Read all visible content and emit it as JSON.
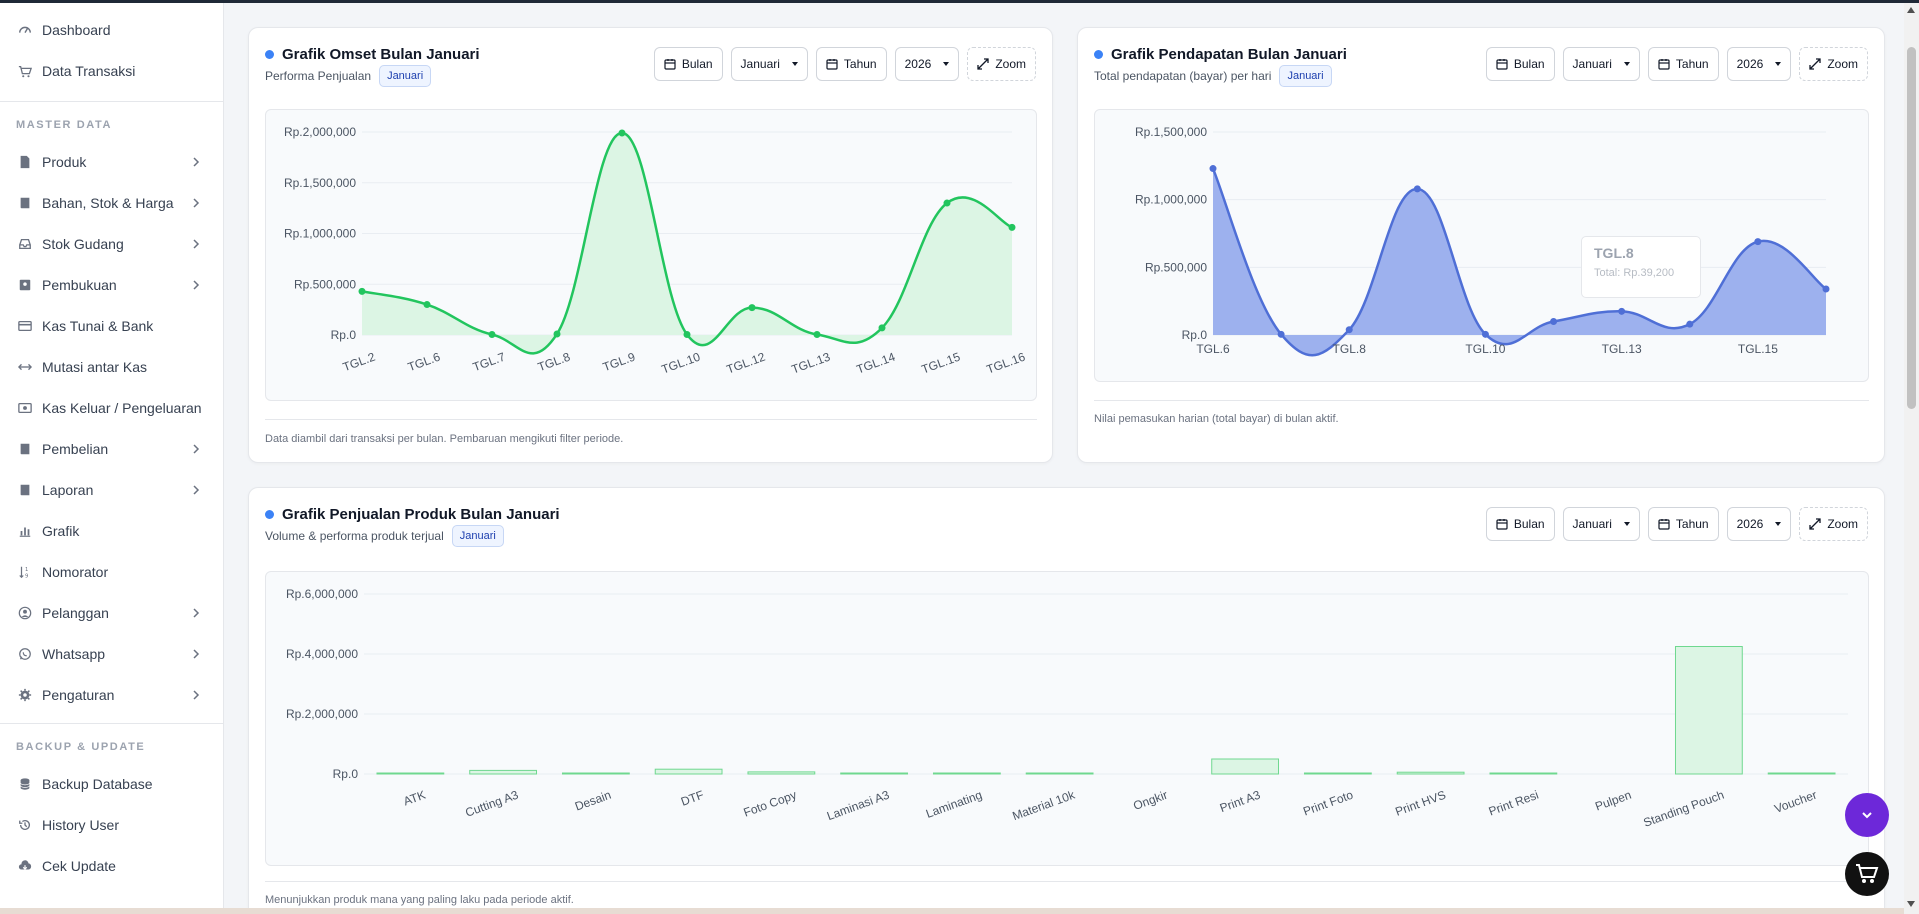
{
  "sidebar": {
    "top_items": [
      {
        "label": "Dashboard",
        "icon": "gauge-icon"
      },
      {
        "label": "Data Transaksi",
        "icon": "cart-icon"
      }
    ],
    "section_master": "MASTER DATA",
    "master_items": [
      {
        "label": "Produk",
        "icon": "file-icon",
        "chevron": true
      },
      {
        "label": "Bahan, Stok & Harga",
        "icon": "book-icon",
        "chevron": true
      },
      {
        "label": "Stok Gudang",
        "icon": "inbox-icon",
        "chevron": true
      },
      {
        "label": "Pembukuan",
        "icon": "ledger-icon",
        "chevron": true
      },
      {
        "label": "Kas Tunai & Bank",
        "icon": "card-icon",
        "chevron": false
      },
      {
        "label": "Mutasi antar Kas",
        "icon": "arrows-h-icon",
        "chevron": false
      },
      {
        "label": "Kas Keluar / Pengeluaran",
        "icon": "cash-icon",
        "chevron": false
      },
      {
        "label": "Pembelian",
        "icon": "book-icon",
        "chevron": true
      },
      {
        "label": "Laporan",
        "icon": "book-icon",
        "chevron": true
      },
      {
        "label": "Grafik",
        "icon": "bar-chart-icon",
        "chevron": false
      },
      {
        "label": "Nomorator",
        "icon": "sort-numeric-icon",
        "chevron": false
      },
      {
        "label": "Pelanggan",
        "icon": "user-circle-icon",
        "chevron": true
      },
      {
        "label": "Whatsapp",
        "icon": "whatsapp-icon",
        "chevron": true
      },
      {
        "label": "Pengaturan",
        "icon": "gear-icon",
        "chevron": true
      }
    ],
    "section_backup": "BACKUP & UPDATE",
    "backup_items": [
      {
        "label": "Backup Database",
        "icon": "database-icon"
      },
      {
        "label": "History User",
        "icon": "history-icon"
      },
      {
        "label": "Cek Update",
        "icon": "cloud-download-icon"
      }
    ]
  },
  "controls": {
    "month_btn": "Bulan",
    "month_value": "Januari",
    "year_btn": "Tahun",
    "year_value": "2026",
    "zoom": "Zoom"
  },
  "omset": {
    "title": "Grafik Omset Bulan Januari",
    "subtitle": "Performa Penjualan",
    "badge": "Januari",
    "footer": "Data diambil dari transaksi per bulan. Pembaruan mengikuti filter periode."
  },
  "pendapatan": {
    "title": "Grafik Pendapatan Bulan Januari",
    "subtitle": "Total pendapatan (bayar) per hari",
    "badge": "Januari",
    "footer": "Nilai pemasukan harian (total bayar) di bulan aktif.",
    "tooltip_title": "TGL.8",
    "tooltip_body": "Total: Rp.39,200"
  },
  "produk": {
    "title": "Grafik Penjualan Produk Bulan Januari",
    "subtitle": "Volume & performa produk terjual",
    "badge": "Januari",
    "footer": "Menunjukkan produk mana yang paling laku pada periode aktif."
  },
  "chart_data": [
    {
      "type": "area",
      "title": "Grafik Omset Bulan Januari",
      "categories": [
        "TGL.2",
        "TGL.6",
        "TGL.7",
        "TGL.8",
        "TGL.9",
        "TGL.10",
        "TGL.12",
        "TGL.13",
        "TGL.14",
        "TGL.15",
        "TGL.16"
      ],
      "values": [
        430000,
        300000,
        5000,
        10000,
        1990000,
        5000,
        270000,
        5000,
        70000,
        1300000,
        1060000
      ],
      "y_ticks": [
        "Rp.0",
        "Rp.500,000",
        "Rp.1,000,000",
        "Rp.1,500,000",
        "Rp.2,000,000"
      ],
      "ylim": [
        0,
        2000000
      ],
      "color": "#22c55e",
      "fill": "#dcf5e4",
      "grid": true
    },
    {
      "type": "area",
      "title": "Grafik Pendapatan Bulan Januari",
      "categories": [
        "TGL.6",
        "TGL.7",
        "TGL.8",
        "TGL.9",
        "TGL.10",
        "TGL.12",
        "TGL.13",
        "TGL.14",
        "TGL.15",
        "TGL.16"
      ],
      "x_labels": [
        "TGL.6",
        "TGL.8",
        "TGL.10",
        "TGL.13",
        "TGL.15"
      ],
      "values": [
        1230000,
        5000,
        39200,
        1080000,
        5000,
        100000,
        175000,
        80000,
        690000,
        340000
      ],
      "y_ticks": [
        "Rp.0",
        "Rp.500,000",
        "Rp.1,000,000",
        "Rp.1,500,000"
      ],
      "ylim": [
        0,
        1500000
      ],
      "color": "#4f6fd6",
      "fill": "#9db1ee",
      "grid": true
    },
    {
      "type": "bar",
      "title": "Grafik Penjualan Produk Bulan Januari",
      "categories": [
        "ATK",
        "Cutting A3",
        "Desain",
        "DTF",
        "Foto Copy",
        "Laminasi A3",
        "Laminating",
        "Material 10k",
        "Ongkir",
        "Print A3",
        "Print Foto",
        "Print HVS",
        "Print Resi",
        "Pulpen",
        "Standing Pouch",
        "Voucher"
      ],
      "values": [
        20000,
        120000,
        5000,
        160000,
        70000,
        5000,
        5000,
        5000,
        0,
        500000,
        5000,
        60000,
        10000,
        0,
        4250000,
        30000
      ],
      "y_ticks": [
        "Rp.0",
        "Rp.2,000,000",
        "Rp.4,000,000",
        "Rp.6,000,000"
      ],
      "ylim": [
        0,
        6000000
      ],
      "color": "#6fd88f",
      "fill": "#dcf5e4",
      "grid": true
    }
  ]
}
